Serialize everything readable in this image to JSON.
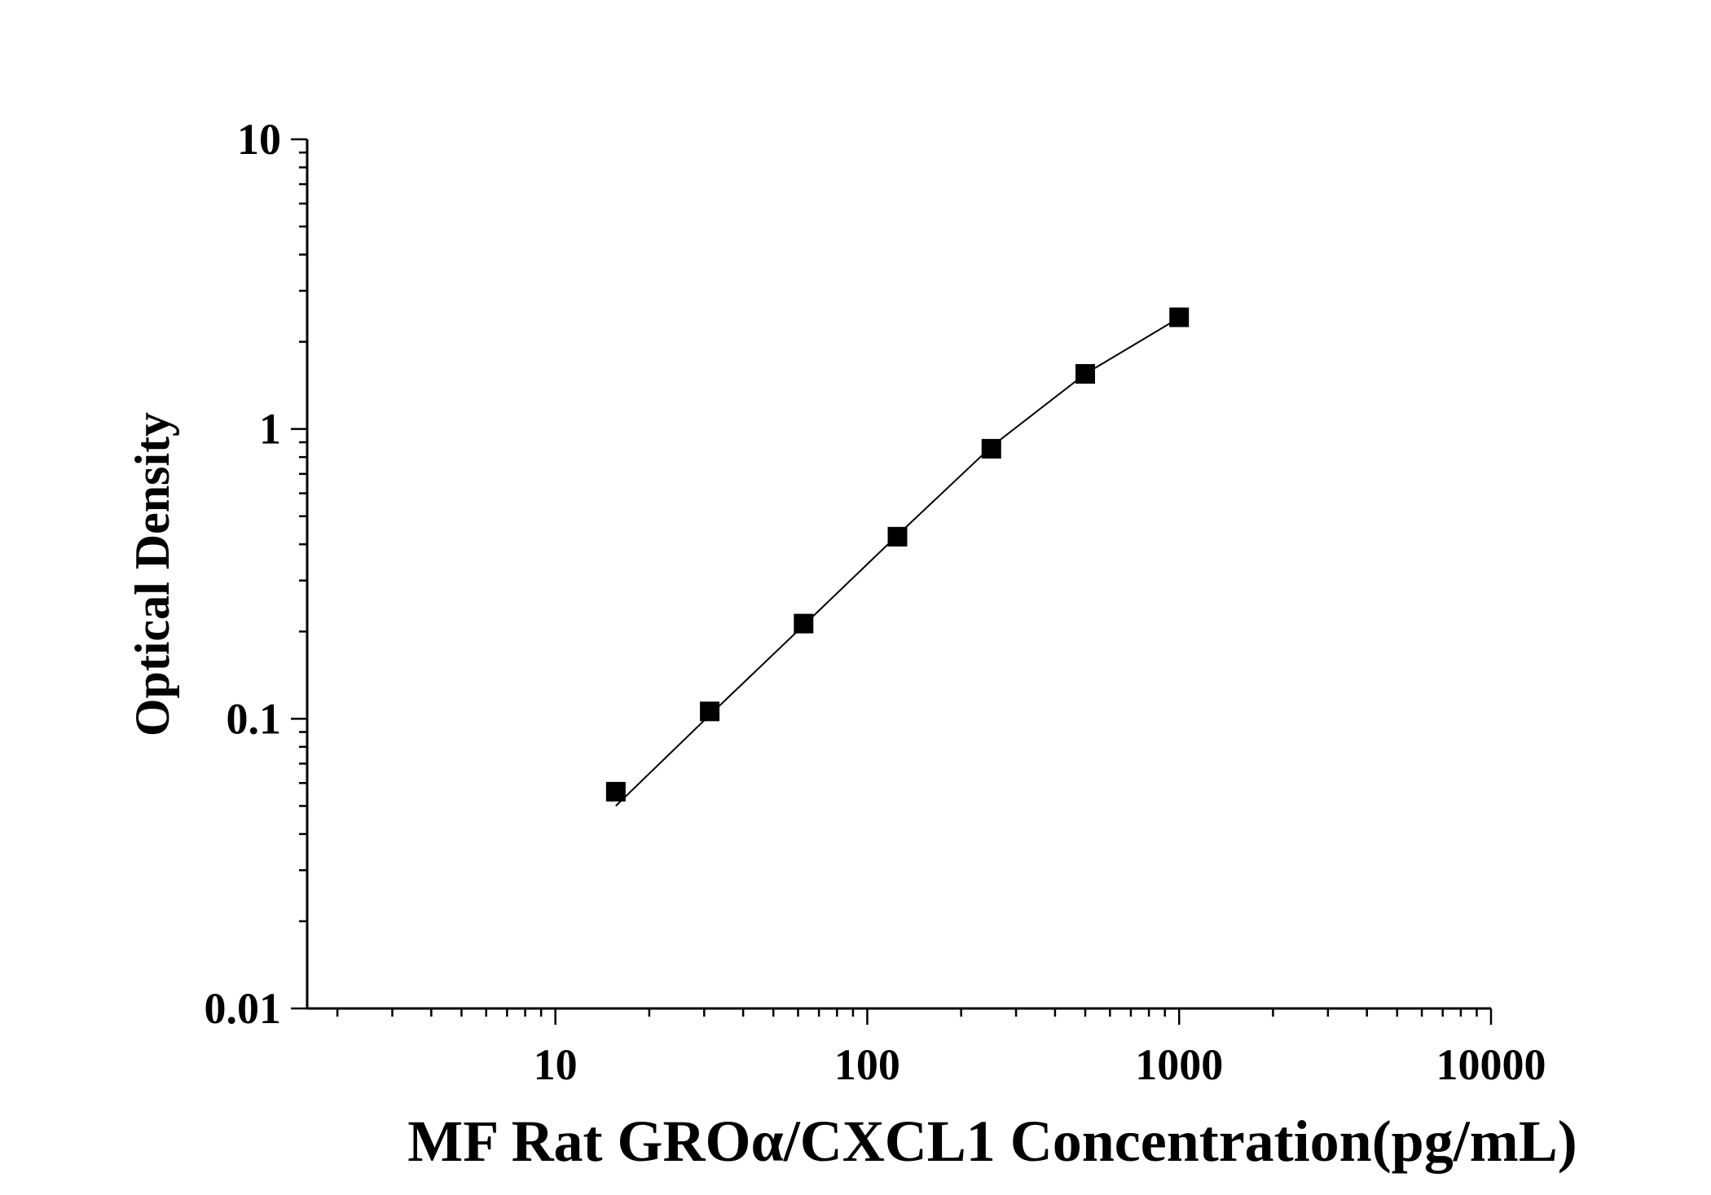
{
  "chart_data": {
    "type": "scatter",
    "title": "",
    "xlabel": "MF Rat GROα/CXCL1 Concentration(pg/mL)",
    "ylabel": "Optical Density",
    "x_scale": "log",
    "y_scale": "log",
    "xlim": [
      1.6,
      10000
    ],
    "ylim": [
      0.01,
      10
    ],
    "x_ticks": [
      "10",
      "100",
      "1000",
      "10000"
    ],
    "y_ticks": [
      "0.01",
      "0.1",
      "1",
      "10"
    ],
    "grid": false,
    "legend": "none",
    "series": [
      {
        "points": [
          {
            "x": 15.625,
            "y": 0.056
          },
          {
            "x": 31.25,
            "y": 0.106
          },
          {
            "x": 62.5,
            "y": 0.213
          },
          {
            "x": 125,
            "y": 0.425
          },
          {
            "x": 250,
            "y": 0.855
          },
          {
            "x": 500,
            "y": 1.55
          },
          {
            "x": 1000,
            "y": 2.43
          }
        ],
        "fit_curve": [
          {
            "x": 15.625,
            "y": 0.05
          },
          {
            "x": 31.25,
            "y": 0.103
          },
          {
            "x": 62.5,
            "y": 0.21
          },
          {
            "x": 125,
            "y": 0.43
          },
          {
            "x": 250,
            "y": 0.87
          },
          {
            "x": 500,
            "y": 1.55
          },
          {
            "x": 1000,
            "y": 2.42
          }
        ]
      }
    ],
    "colors": {
      "marker": "#000000",
      "line": "#000000",
      "axis": "#000000"
    }
  }
}
